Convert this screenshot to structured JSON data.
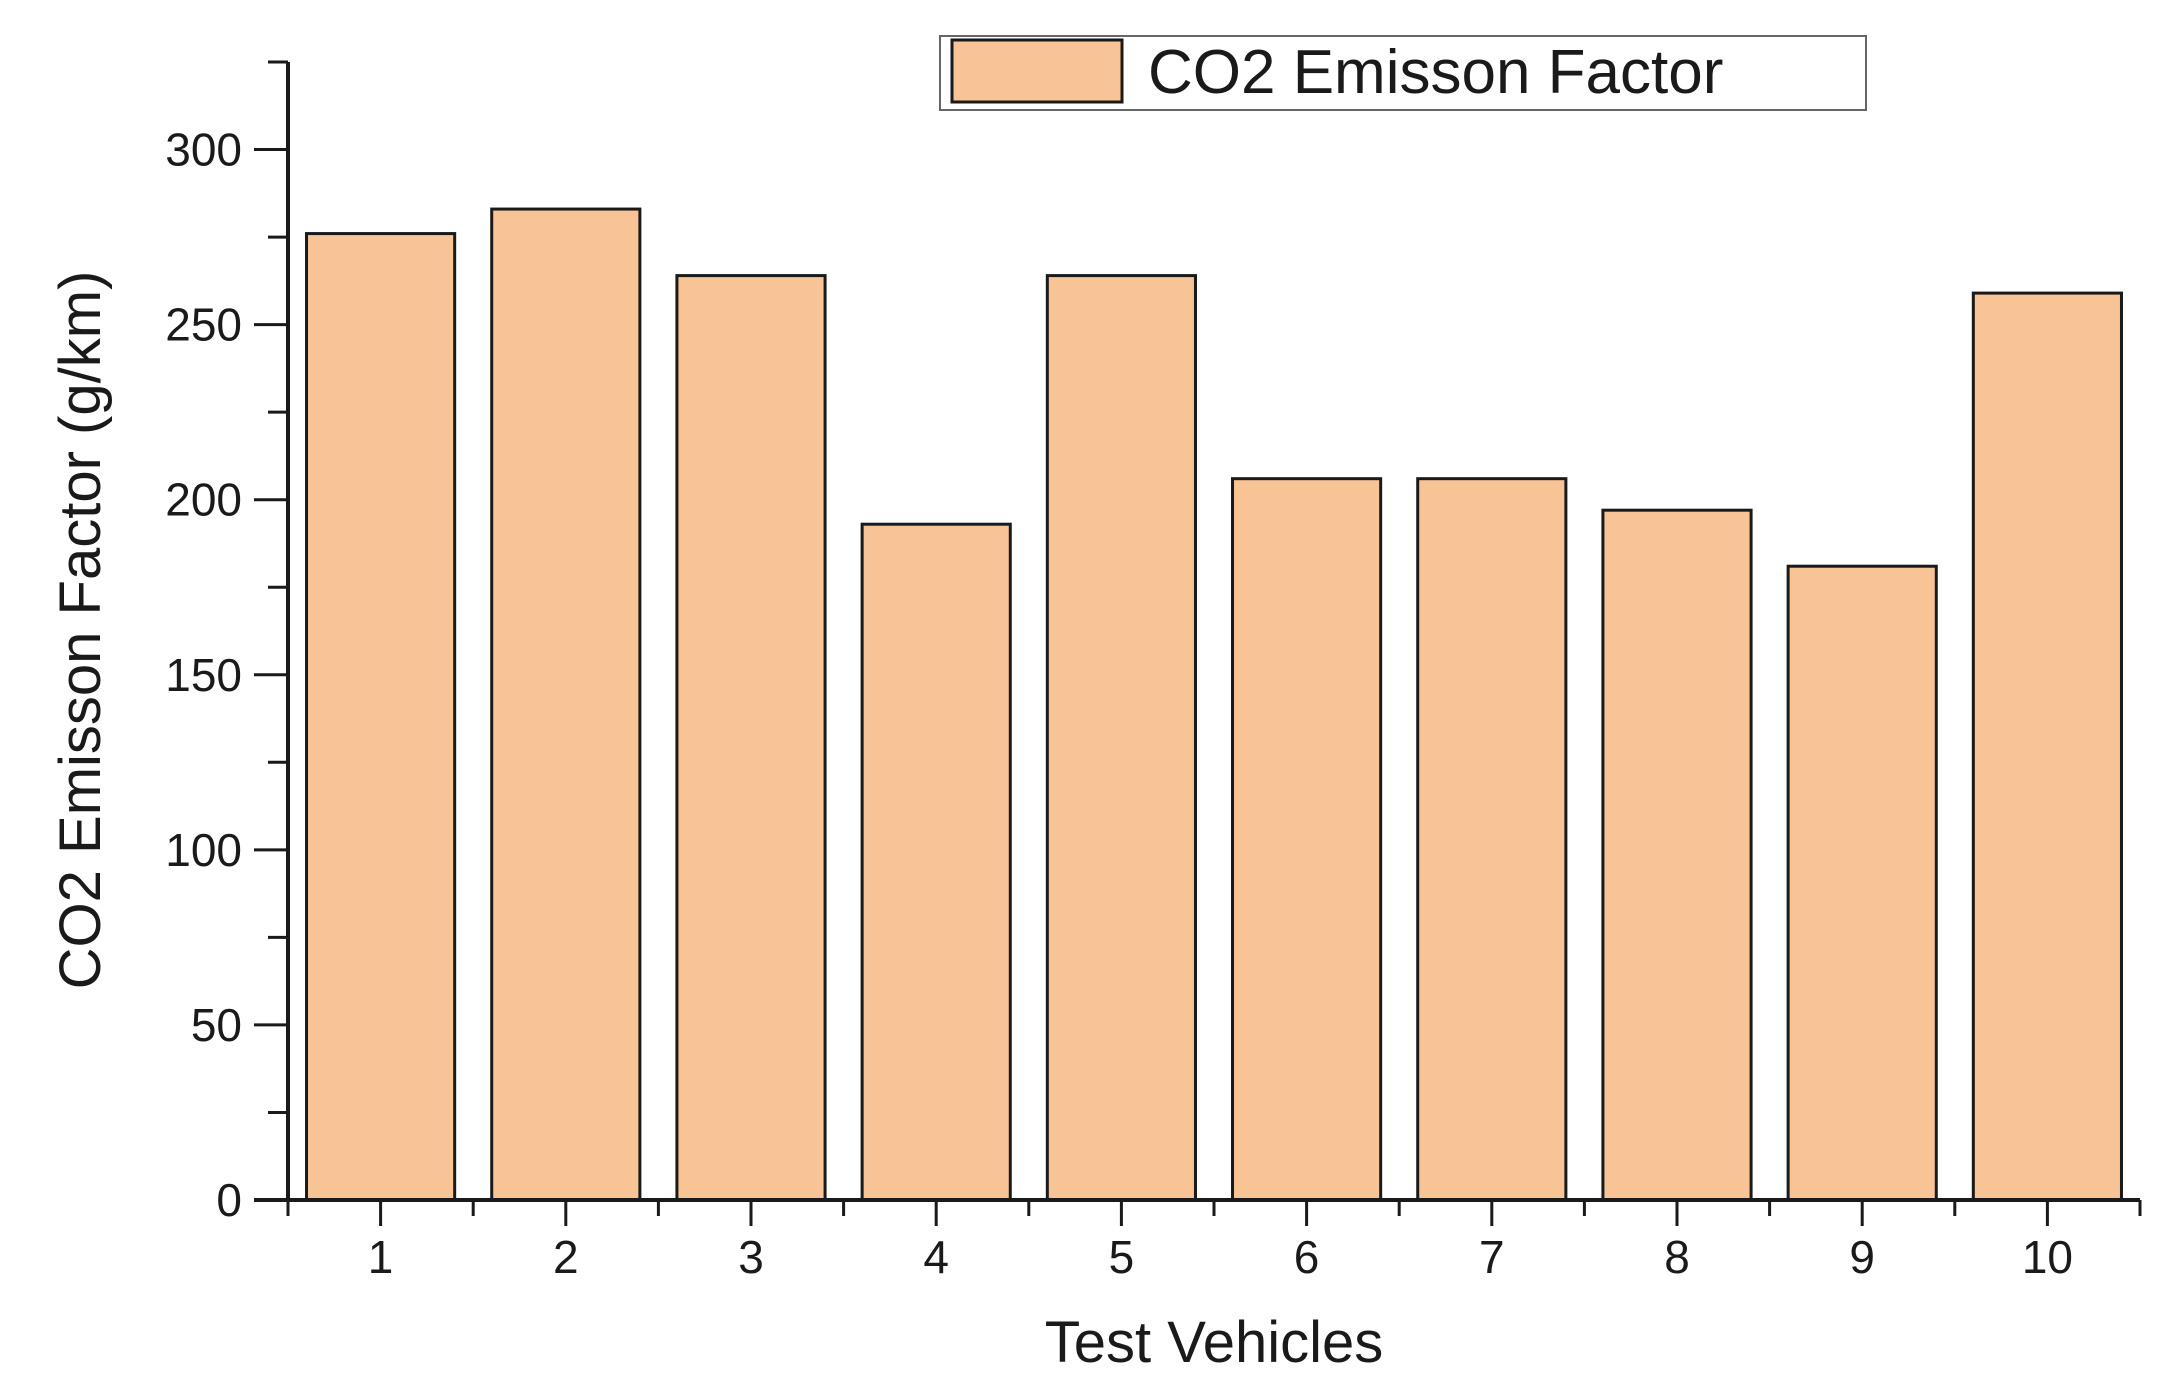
{
  "chart_data": {
    "type": "bar",
    "categories": [
      "1",
      "2",
      "3",
      "4",
      "5",
      "6",
      "7",
      "8",
      "9",
      "10"
    ],
    "series": [
      {
        "name": "CO2 Emisson Factor",
        "values": [
          276,
          283,
          264,
          193,
          264,
          206,
          206,
          197,
          181,
          259
        ]
      }
    ],
    "title": "",
    "xlabel": "Test Vehicles",
    "ylabel": "CO2 Emisson Factor (g/km)",
    "ylim": [
      0,
      325
    ],
    "yticks": [
      "0",
      "50",
      "100",
      "150",
      "200",
      "250",
      "300"
    ],
    "ytick_values": [
      0,
      50,
      100,
      150,
      200,
      250,
      300
    ],
    "grid": false,
    "legend_position": "top-right",
    "colors": {
      "bar_fill": "#f9c495",
      "bar_stroke": "#1a1a1a",
      "axis": "#1a1a1a"
    }
  }
}
